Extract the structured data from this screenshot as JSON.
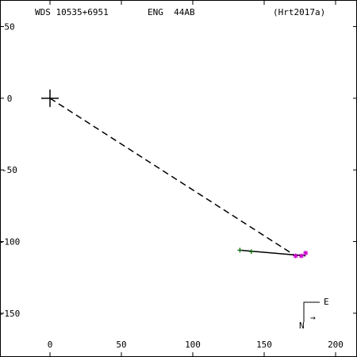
{
  "header": {
    "left": "WDS 10535+6951",
    "middle": "ENG  44AB",
    "right": "(Hrt2017a)"
  },
  "compass": {
    "east_label": "E",
    "north_label": "N",
    "arrow_glyph": "→"
  },
  "chart_data": {
    "type": "scatter",
    "title": "",
    "xlabel": "",
    "ylabel": "",
    "xlim": [
      -35,
      215
    ],
    "ylim": [
      -180,
      68
    ],
    "x_ticks": [
      0,
      50,
      100,
      150,
      200
    ],
    "x_tick_labels": [
      "0",
      "50",
      "100",
      "150",
      "200"
    ],
    "y_ticks": [
      50,
      0,
      -50,
      -100,
      -150
    ],
    "y_tick_labels": [
      "50",
      "0",
      "-50",
      "-100",
      "-150"
    ],
    "primary": {
      "x": 0,
      "y": 0,
      "marker": "plus"
    },
    "dashed_line": {
      "from": [
        0,
        0
      ],
      "to": [
        172,
        -110
      ]
    },
    "orbit_segment": {
      "from": [
        133,
        -106
      ],
      "to": [
        179,
        -110
      ]
    },
    "series": [
      {
        "marker": "plus",
        "color": "#006400",
        "points": [
          [
            133,
            -106
          ],
          [
            141,
            -107
          ]
        ]
      },
      {
        "marker": "star",
        "color": "#cc00cc",
        "points": [
          [
            172,
            -110
          ],
          [
            176,
            -110
          ],
          [
            179,
            -108
          ]
        ]
      }
    ],
    "grid": false,
    "legend": "none"
  }
}
